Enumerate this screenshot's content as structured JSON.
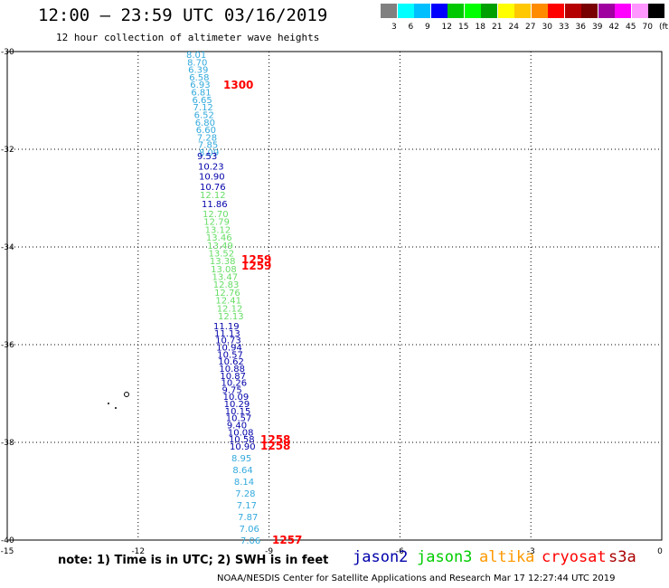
{
  "header": {
    "title": "12:00 – 23:59 UTC 03/16/2019",
    "subtitle": "12 hour collection of altimeter wave heights"
  },
  "legend": {
    "colors": [
      "#808080",
      "#00ffff",
      "#00bfff",
      "#0000ff",
      "#00c800",
      "#00ff00",
      "#00a000",
      "#ffff00",
      "#ffc800",
      "#ff8c00",
      "#ff0000",
      "#b40000",
      "#780000",
      "#a000a0",
      "#ff00ff",
      "#ff96ff",
      "#000000"
    ],
    "labels": [
      "3",
      "6",
      "9",
      "12",
      "15",
      "18",
      "21",
      "24",
      "27",
      "30",
      "33",
      "36",
      "39",
      "42",
      "45",
      "70"
    ],
    "unit": "(ft)"
  },
  "axes": {
    "lat_labels": [
      "-30",
      "-32",
      "-34",
      "-36",
      "-38",
      "-40"
    ],
    "lon_labels": [
      "-15",
      "-12",
      "-9",
      "-6",
      "-3",
      "0"
    ]
  },
  "series_colors": {
    "jason2": "#0000aa",
    "jason3": "#00cc00",
    "altika": "#ff9900",
    "cryosat": "#ff0000",
    "s3a": "#aa0000",
    "light": "#33aadd",
    "jason3_track": "#66dd66"
  },
  "tracks": {
    "light_top": [
      "8.01",
      "8.70",
      "6.39",
      "6.58",
      "6.93",
      "6.81",
      "6.65",
      "7.12",
      "6.52",
      "6.80",
      "6.60",
      "7.28",
      "7.85",
      "8.09"
    ],
    "dark_mid": [
      "9.53",
      "10.23",
      "10.90",
      "10.76"
    ],
    "green_a": [
      "12.12"
    ],
    "dark_b": [
      "11.86"
    ],
    "green_main": [
      "12.70",
      "12.79",
      "13.12",
      "13.46",
      "13.49",
      "13.52",
      "13.38",
      "13.08",
      "13.47",
      "12.83",
      "12.76",
      "12.41",
      "12.12",
      "12.13"
    ],
    "dark_bottom": [
      "11.19",
      "11.13",
      "10.73",
      "10.94",
      "10.57",
      "10.62",
      "10.88",
      "10.87",
      "10.26",
      "9.75",
      "10.09",
      "10.29",
      "10.15",
      "10.57",
      "9.40",
      "10.08",
      "10.58",
      "10.90"
    ],
    "light_bottom": [
      "8.95",
      "8.64",
      "8.14",
      "7.28",
      "7.17",
      "7.87",
      "7.06",
      "7.06"
    ]
  },
  "time_labels": [
    "1300",
    "1259",
    "1259",
    "1258",
    "1258",
    "1257"
  ],
  "note": "note: 1) Time is in UTC; 2) SWH is in feet",
  "satellites": [
    "jason2",
    "jason3",
    "altika",
    "cryosat",
    "s3a"
  ],
  "footer": "NOAA/NESDIS Center for Satellite Applications and Research    Mar 17 12:27:44 UTC 2019"
}
